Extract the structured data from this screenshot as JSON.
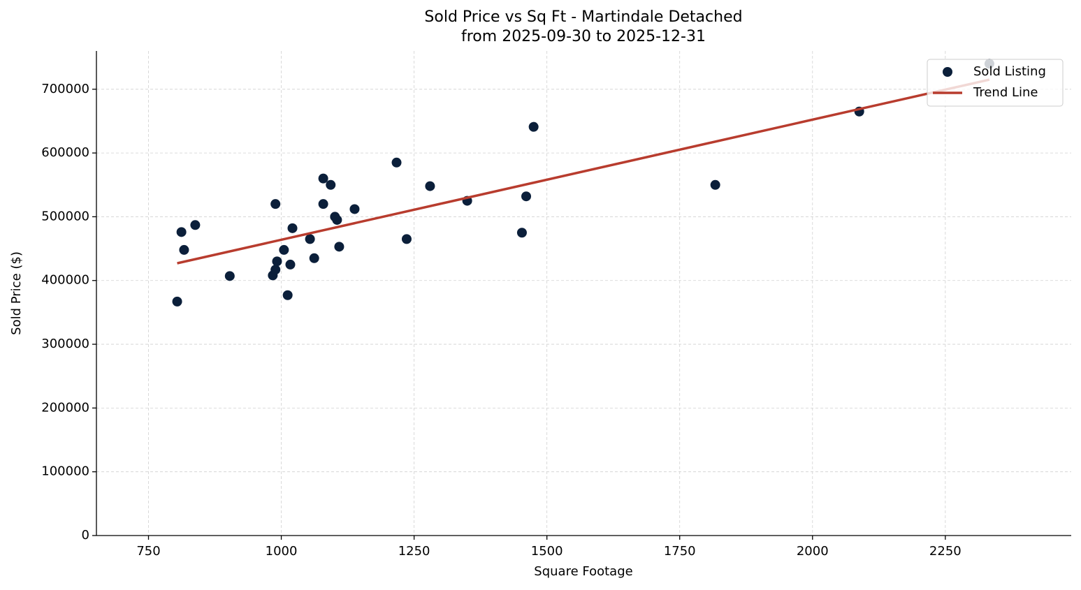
{
  "chart_data": {
    "type": "scatter",
    "title": "Sold Price vs Sq Ft - Martindale Detached",
    "subtitle": "from 2025-09-30 to 2025-12-31",
    "x_label": "Square Footage",
    "y_label": "Sold Price ($)",
    "xlim": [
      652,
      2487
    ],
    "ylim": [
      0,
      760000
    ],
    "xticks": [
      750,
      1000,
      1250,
      1500,
      1750,
      2000,
      2250
    ],
    "yticks": [
      0,
      100000,
      200000,
      300000,
      400000,
      500000,
      600000,
      700000
    ],
    "grid": true,
    "legend": "upper right",
    "series": [
      {
        "name": "Sold Listing",
        "type": "scatter",
        "color": "#0b1f3a",
        "x": [
          804,
          812,
          817,
          838,
          903,
          984,
          989,
          989,
          992,
          1005,
          1012,
          1017,
          1021,
          1054,
          1062,
          1079,
          1079,
          1093,
          1101,
          1105,
          1109,
          1138,
          1217,
          1236,
          1280,
          1350,
          1453,
          1461,
          1475,
          1817,
          2088,
          2333
        ],
        "values": [
          367000,
          476000,
          448000,
          487000,
          407000,
          408000,
          520000,
          417000,
          430000,
          448000,
          377000,
          425000,
          482000,
          465000,
          435000,
          560000,
          520000,
          550000,
          500000,
          495000,
          453000,
          512000,
          585000,
          465000,
          548000,
          525000,
          475000,
          532000,
          641000,
          550000,
          665000,
          740000
        ]
      },
      {
        "name": "Trend Line",
        "type": "line",
        "color": "#b83c2e",
        "x": [
          804,
          2333
        ],
        "values": [
          427000,
          715000
        ]
      }
    ]
  }
}
